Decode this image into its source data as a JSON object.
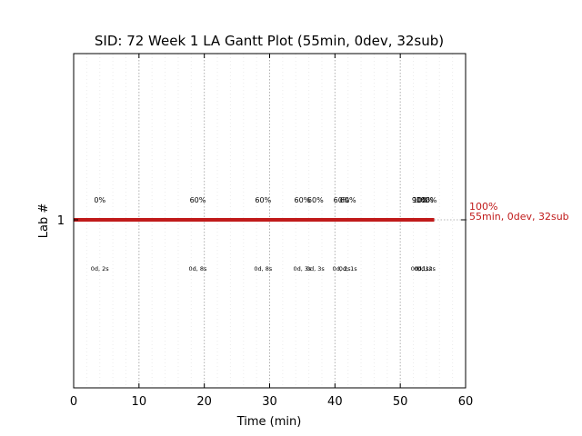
{
  "chart_data": {
    "type": "gantt",
    "title": "SID: 72 Week 1 LA Gantt Plot (55min, 0dev, 32sub)",
    "xlabel": "Time (min)",
    "ylabel": "Lab #",
    "xlim": [
      0,
      60
    ],
    "x_ticks": [
      "0",
      "10",
      "20",
      "30",
      "40",
      "50",
      "60"
    ],
    "y_ticks": [
      "1"
    ],
    "grid": "vertical dotted at major and minor ticks",
    "series": [
      {
        "lab": 1,
        "start": 0,
        "end": 55.2,
        "color": "#c01a1a",
        "end_label_line1": "100%",
        "end_label_line2": "55min, 0dev, 32sub"
      }
    ],
    "annotations": [
      {
        "x": 4.0,
        "top": "0%",
        "bottom": "0d, 2s"
      },
      {
        "x": 19.0,
        "top": "60%",
        "bottom": "0d, 8s"
      },
      {
        "x": 29.0,
        "top": "60%",
        "bottom": "0d, 8s"
      },
      {
        "x": 35.0,
        "top": "60%",
        "bottom": "0d, 3s"
      },
      {
        "x": 37.0,
        "top": "60%",
        "bottom": "0d, 3s"
      },
      {
        "x": 41.0,
        "top": "60%",
        "bottom": "0d, 2s"
      },
      {
        "x": 42.0,
        "top": "60%",
        "bottom": "0d, 1s"
      },
      {
        "x": 53.0,
        "top": "90%",
        "bottom": "0d, 1s"
      },
      {
        "x": 53.5,
        "top": "100%",
        "bottom": "0d, 1s"
      },
      {
        "x": 54.0,
        "top": "100%",
        "bottom": "0d, 2s"
      }
    ]
  }
}
